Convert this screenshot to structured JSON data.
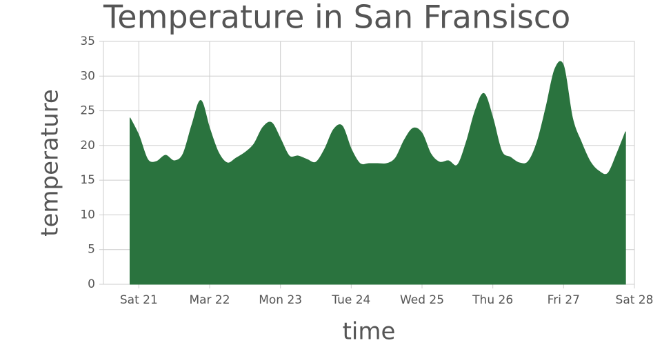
{
  "chart_data": {
    "type": "area",
    "title": "Temperature in San Fransisco",
    "x_label": "time",
    "y_label": "temperature",
    "color": "#2a733e",
    "grid": true,
    "x": [
      20.875,
      21,
      21.125,
      21.25,
      21.375,
      21.5,
      21.625,
      21.75,
      21.875,
      22,
      22.125,
      22.25,
      22.375,
      22.5,
      22.625,
      22.75,
      22.875,
      23,
      23.125,
      23.25,
      23.375,
      23.5,
      23.625,
      23.75,
      23.875,
      24,
      24.125,
      24.25,
      24.375,
      24.5,
      24.625,
      24.75,
      24.875,
      25,
      25.125,
      25.25,
      25.375,
      25.5,
      25.625,
      25.75,
      25.875,
      26,
      26.125,
      26.25,
      26.375,
      26.5,
      26.625,
      26.75,
      26.875,
      27,
      27.125,
      27.25,
      27.375,
      27.5,
      27.625,
      27.75,
      27.875
    ],
    "values": [
      24,
      21.5,
      18,
      17.7,
      18.6,
      17.8,
      18.8,
      23,
      26.5,
      22.5,
      19,
      17.5,
      18.2,
      19,
      20.2,
      22.6,
      23.3,
      21,
      18.5,
      18.5,
      18,
      17.6,
      19.5,
      22.3,
      22.8,
      19.5,
      17.4,
      17.4,
      17.4,
      17.4,
      18.2,
      20.8,
      22.5,
      21.8,
      18.8,
      17.6,
      17.8,
      17.2,
      20.5,
      25,
      27.5,
      24,
      19.2,
      18.3,
      17.5,
      17.7,
      20.5,
      25.5,
      31,
      31.5,
      24,
      20.5,
      17.7,
      16.3,
      16,
      18.8,
      22
    ],
    "xlim": [
      20.5,
      28
    ],
    "xticks": [
      {
        "value": 21,
        "label": "Sat 21"
      },
      {
        "value": 22,
        "label": "Mar 22"
      },
      {
        "value": 23,
        "label": "Mon 23"
      },
      {
        "value": 24,
        "label": "Tue 24"
      },
      {
        "value": 25,
        "label": "Wed 25"
      },
      {
        "value": 26,
        "label": "Thu 26"
      },
      {
        "value": 27,
        "label": "Fri 27"
      },
      {
        "value": 28,
        "label": "Sat 28"
      }
    ],
    "ylim": [
      0,
      35
    ],
    "yticks": [
      0,
      5,
      10,
      15,
      20,
      25,
      30,
      35
    ]
  }
}
